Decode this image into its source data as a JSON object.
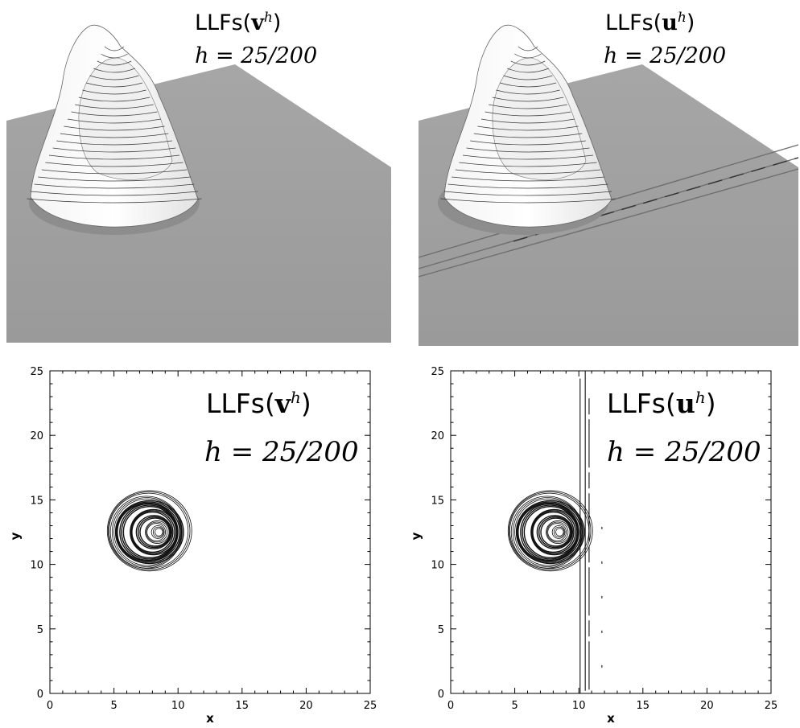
{
  "panels": {
    "top_left": {
      "label_fn": "LLFs(",
      "label_var": "v",
      "label_sup": "h",
      "label_close": ")",
      "h_eq": "h = 25/200"
    },
    "top_right": {
      "label_fn": "LLFs(",
      "label_var": "u",
      "label_sup": "h",
      "label_close": ")",
      "h_eq": "h = 25/200"
    },
    "bottom_left": {
      "label_fn": "LLFs(",
      "label_var": "v",
      "label_sup": "h",
      "label_close": ")",
      "h_eq": "h = 25/200"
    },
    "bottom_right": {
      "label_fn": "LLFs(",
      "label_var": "u",
      "label_sup": "h",
      "label_close": ")",
      "h_eq": "h = 25/200"
    }
  },
  "chart_data": [
    {
      "type": "surface",
      "panel": "top_left",
      "description_values": {
        "variable": "v^h",
        "h": "25/200"
      }
    },
    {
      "type": "surface",
      "panel": "top_right",
      "description_values": {
        "variable": "u^h",
        "h": "25/200"
      }
    },
    {
      "type": "contour",
      "panel": "bottom_left",
      "xlabel": "x",
      "ylabel": "y",
      "xlim": [
        0,
        25
      ],
      "ylim": [
        0,
        25
      ],
      "xticks": [
        "0",
        "5",
        "10",
        "15",
        "20",
        "25"
      ],
      "yticks": [
        "0",
        "5",
        "10",
        "15",
        "20",
        "25"
      ],
      "vortex_center": [
        8.5,
        12.5
      ],
      "contour_rings": [
        {
          "cx": 8.5,
          "cy": 12.5,
          "r": 0.3
        },
        {
          "cx": 8.3,
          "cy": 12.5,
          "r": 0.7
        },
        {
          "cx": 8.2,
          "cy": 12.5,
          "r": 1.1
        },
        {
          "cx": 8.0,
          "cy": 12.5,
          "r": 1.6
        },
        {
          "cx": 7.8,
          "cy": 12.5,
          "r": 2.0
        },
        {
          "cx": 7.7,
          "cy": 12.5,
          "r": 2.3
        },
        {
          "cx": 7.6,
          "cy": 12.5,
          "r": 2.6
        },
        {
          "cx": 7.7,
          "cy": 12.6,
          "r": 3.0
        }
      ]
    },
    {
      "type": "contour",
      "panel": "bottom_right",
      "xlabel": "x",
      "ylabel": "y",
      "xlim": [
        0,
        25
      ],
      "ylim": [
        0,
        25
      ],
      "xticks": [
        "0",
        "5",
        "10",
        "15",
        "20",
        "25"
      ],
      "yticks": [
        "0",
        "5",
        "10",
        "15",
        "20",
        "25"
      ],
      "vortex_center": [
        8.5,
        12.5
      ],
      "contour_rings": [
        {
          "cx": 8.5,
          "cy": 12.5,
          "r": 0.3
        },
        {
          "cx": 8.3,
          "cy": 12.5,
          "r": 0.7
        },
        {
          "cx": 8.2,
          "cy": 12.5,
          "r": 1.1
        },
        {
          "cx": 8.0,
          "cy": 12.5,
          "r": 1.6
        },
        {
          "cx": 7.8,
          "cy": 12.5,
          "r": 2.0
        },
        {
          "cx": 7.7,
          "cy": 12.5,
          "r": 2.3
        },
        {
          "cx": 7.6,
          "cy": 12.5,
          "r": 2.6
        },
        {
          "cx": 7.7,
          "cy": 12.6,
          "r": 3.0
        }
      ],
      "vertical_artifacts_x": [
        10.1,
        10.5,
        10.8,
        11.8
      ],
      "vertical_artifacts_y": [
        [
          0.0,
          24.4
        ],
        [
          0.2,
          25.0
        ],
        [
          0.3,
          23.0
        ],
        [
          2.0,
          14.0
        ]
      ]
    }
  ]
}
